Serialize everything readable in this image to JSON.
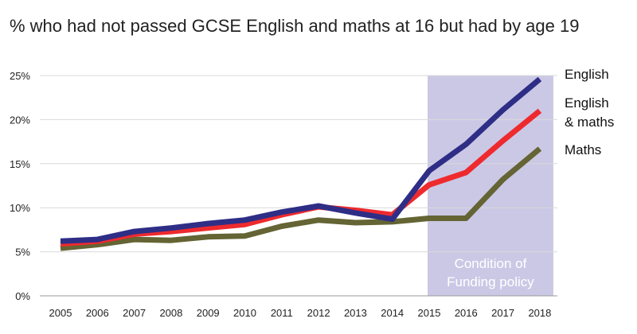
{
  "chart_data": {
    "type": "line",
    "title": "% who had not passed GCSE English and maths at 16 but had by age 19",
    "xlabel": "",
    "ylabel": "",
    "categories": [
      "2005",
      "2006",
      "2007",
      "2008",
      "2009",
      "2010",
      "2011",
      "2012",
      "2013",
      "2014",
      "2015",
      "2016",
      "2017",
      "2018"
    ],
    "ylim": [
      0,
      25
    ],
    "yticks": [
      0,
      5,
      10,
      15,
      20,
      25
    ],
    "ytick_labels": [
      "0%",
      "5%",
      "10%",
      "15%",
      "20%",
      "25%"
    ],
    "grid": "horizontal",
    "series": [
      {
        "name": "English",
        "color": "#2e2e86",
        "values": [
          6.2,
          6.4,
          7.3,
          7.7,
          8.2,
          8.6,
          9.5,
          10.2,
          9.4,
          8.7,
          14.2,
          17.2,
          21.1,
          24.6
        ]
      },
      {
        "name": "English & maths",
        "label_lines": [
          "English",
          "& maths"
        ],
        "color": "#ee2a2e",
        "values": [
          5.9,
          6.2,
          7.0,
          7.3,
          7.7,
          8.1,
          9.2,
          10.1,
          9.7,
          9.2,
          12.6,
          14.0,
          17.6,
          21.0
        ]
      },
      {
        "name": "Maths",
        "color": "#646434",
        "values": [
          5.4,
          5.8,
          6.4,
          6.3,
          6.7,
          6.8,
          7.9,
          8.6,
          8.3,
          8.4,
          8.8,
          8.8,
          13.2,
          16.7
        ]
      }
    ],
    "annotation": {
      "text_lines": [
        "Condition of",
        "Funding policy"
      ],
      "range": [
        "2015",
        "2018"
      ],
      "color": "#cbc8e6"
    }
  }
}
